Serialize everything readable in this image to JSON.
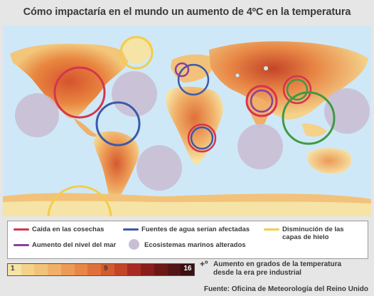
{
  "title": "Cómo impactaría en el mundo un aumento de 4ºC en la temperatura",
  "legend": {
    "items": [
      {
        "key": "cosechas",
        "label": "Caída en las cosechas",
        "color": "#d6344f"
      },
      {
        "key": "agua",
        "label": "Fuentes de agua serían afectadas",
        "color": "#3b5aa8"
      },
      {
        "key": "hielo",
        "label": "Disminución de las capas de hielo",
        "color": "#f2cd4a"
      },
      {
        "key": "mar",
        "label": "Aumento del nivel del mar",
        "color": "#8a3f9e"
      },
      {
        "key": "ecosistemas",
        "label": "Ecosistemas marinos alterados",
        "color": "#c9bfd4"
      }
    ]
  },
  "scale": {
    "min_label": "1",
    "mid_label": "9",
    "max_label": "16",
    "colors": [
      "#f6e3a6",
      "#f4d28a",
      "#f2c27a",
      "#f0b068",
      "#ec9a55",
      "#e88645",
      "#e0703a",
      "#d45a30",
      "#c44428",
      "#a82a22",
      "#8a1c1c",
      "#6c1616",
      "#521414",
      "#3a1010"
    ]
  },
  "scale_prefix": "+º",
  "scale_description_line1": "Aumento en grados de la temperatura",
  "scale_description_line2": "desde la era pre industrial",
  "source": "Fuente: Oficina de Meteorología del Reino Unido",
  "map": {
    "ocean_color": "#cfe8f7",
    "circles": [
      {
        "name": "ecosistemas-circle-atlantic-west",
        "type": "ecosistemas"
      },
      {
        "name": "ecosistemas-circle-north-atlantic",
        "type": "ecosistemas"
      },
      {
        "name": "ecosistemas-circle-south-atlantic",
        "type": "ecosistemas"
      },
      {
        "name": "ecosistemas-circle-indian-ocean",
        "type": "ecosistemas"
      },
      {
        "name": "ecosistemas-circle-pacific-east",
        "type": "ecosistemas"
      },
      {
        "name": "hielo-circle-greenland",
        "type": "hielo"
      },
      {
        "name": "hielo-circle-antarctica",
        "type": "hielo"
      },
      {
        "name": "cosechas-circle-north-america",
        "type": "cosechas"
      },
      {
        "name": "agua-circle-south-america",
        "type": "agua"
      },
      {
        "name": "agua-circle-europe",
        "type": "agua"
      },
      {
        "name": "mar-circle-mediterranean",
        "type": "mar"
      },
      {
        "name": "cosechas-circle-southern-africa",
        "type": "cosechas"
      },
      {
        "name": "agua-circle-southern-africa",
        "type": "agua"
      },
      {
        "name": "cosechas-circle-india",
        "type": "cosechas"
      },
      {
        "name": "mar-circle-india",
        "type": "mar"
      },
      {
        "name": "cosechas-circle-china",
        "type": "cosechas"
      },
      {
        "name": "ecosistemas-green-circle-china",
        "type": "green"
      },
      {
        "name": "ecosistemas-green-circle-southeast-asia",
        "type": "green"
      }
    ]
  }
}
